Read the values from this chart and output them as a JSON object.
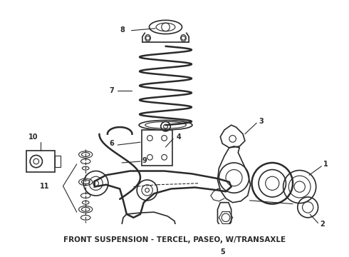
{
  "title": "FRONT SUSPENSION - TERCEL, PASEO, W/TRANSAXLE",
  "title_fontsize": 7.5,
  "title_fontweight": "bold",
  "bg_color": "#ffffff",
  "line_color": "#2a2a2a",
  "fig_width": 4.9,
  "fig_height": 3.6,
  "dpi": 100,
  "gray": "#555555",
  "dark": "#1a1a1a"
}
